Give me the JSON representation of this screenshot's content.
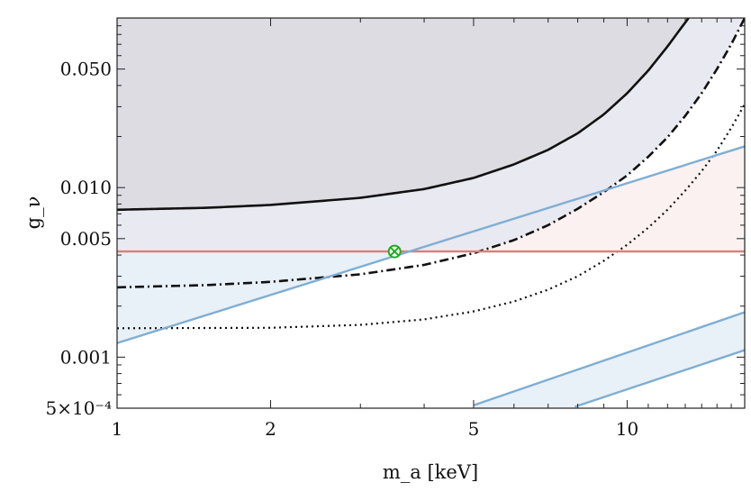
{
  "chart_data": {
    "type": "line",
    "xlabel": "m_a [keV]",
    "ylabel": "g_ν",
    "xscale": "log",
    "yscale": "log",
    "xlim": [
      1,
      17
    ],
    "ylim": [
      0.0005,
      0.1
    ],
    "grid": false,
    "x_ticks": [
      {
        "value": 1,
        "label": "1"
      },
      {
        "value": 2,
        "label": "2"
      },
      {
        "value": 5,
        "label": "5"
      },
      {
        "value": 10,
        "label": "10"
      }
    ],
    "y_ticks": [
      {
        "value": 0.0005,
        "label": "5×10⁻⁴"
      },
      {
        "value": 0.001,
        "label": "0.001"
      },
      {
        "value": 0.005,
        "label": "0.005"
      },
      {
        "value": 0.01,
        "label": "0.010"
      },
      {
        "value": 0.05,
        "label": "0.050"
      }
    ],
    "regions": [
      {
        "color": "#dcdce2",
        "lower": "solid_black_curve"
      },
      {
        "color": "#e9e9f1",
        "lower_line": [
          [
            1,
            0.0042
          ],
          [
            17,
            0.0042
          ]
        ],
        "lower": "dashdot_black_curve"
      },
      {
        "color": "#fbf1f1",
        "lower_line": [
          [
            1,
            0.0042
          ],
          [
            17,
            0.0042
          ]
        ],
        "upper": "blue_band_upper"
      },
      {
        "color": "#e8f0f8",
        "between": [
          "blue_band_upper_line",
          "red_line"
        ]
      },
      {
        "color": "#e8f0f8",
        "between": [
          "blue_band2_upper",
          "blue_band2_lower"
        ]
      }
    ],
    "series": [
      {
        "style": "solid",
        "color": "#111111",
        "x": [
          1,
          1.5,
          2,
          3,
          4,
          5,
          6,
          7,
          8,
          9,
          10,
          11,
          12,
          12.6,
          13.2,
          13.6
        ],
        "y": [
          0.0074,
          0.0076,
          0.0079,
          0.0087,
          0.0098,
          0.0114,
          0.0137,
          0.0167,
          0.0209,
          0.027,
          0.036,
          0.049,
          0.068,
          0.083,
          0.1,
          0.115
        ]
      },
      {
        "style": "dashdot",
        "color": "#111111",
        "x": [
          1,
          1.5,
          2,
          3,
          4,
          5,
          6,
          7,
          8,
          9,
          10,
          11,
          12,
          13,
          14,
          15,
          16,
          17
        ],
        "y": [
          0.00258,
          0.00266,
          0.00278,
          0.00308,
          0.0035,
          0.0041,
          0.0049,
          0.006,
          0.0075,
          0.0094,
          0.0118,
          0.0152,
          0.0198,
          0.0265,
          0.036,
          0.05,
          0.07,
          0.1
        ]
      },
      {
        "style": "dotted",
        "color": "#111111",
        "x": [
          1,
          2,
          3,
          4,
          5,
          6,
          7,
          8,
          9,
          10,
          11,
          12,
          13,
          14,
          15,
          16,
          17
        ],
        "y": [
          0.00148,
          0.00149,
          0.00155,
          0.00167,
          0.00186,
          0.00213,
          0.0025,
          0.003,
          0.0037,
          0.0046,
          0.0058,
          0.0074,
          0.0096,
          0.0125,
          0.0165,
          0.0225,
          0.031
        ]
      },
      {
        "id": "red_line",
        "style": "solid",
        "color": "#d9807a",
        "x": [
          1,
          17
        ],
        "y": [
          0.0042,
          0.0042
        ]
      },
      {
        "id": "blue_band_upper_line",
        "style": "solid",
        "color": "#7faed4",
        "x": [
          1,
          17
        ],
        "y": [
          0.00121,
          0.0175
        ]
      },
      {
        "id": "blue_band2_upper",
        "style": "solid",
        "color": "#7faed4",
        "x": [
          5,
          17
        ],
        "y": [
          0.00052,
          0.00184
        ]
      },
      {
        "id": "blue_band2_lower",
        "style": "solid",
        "color": "#7faed4",
        "x": [
          7.9,
          17
        ],
        "y": [
          0.00051,
          0.0011
        ]
      }
    ],
    "markers": [
      {
        "symbol": "circled-times",
        "color": "#22aa22",
        "x": 3.5,
        "y": 0.0042
      }
    ]
  }
}
